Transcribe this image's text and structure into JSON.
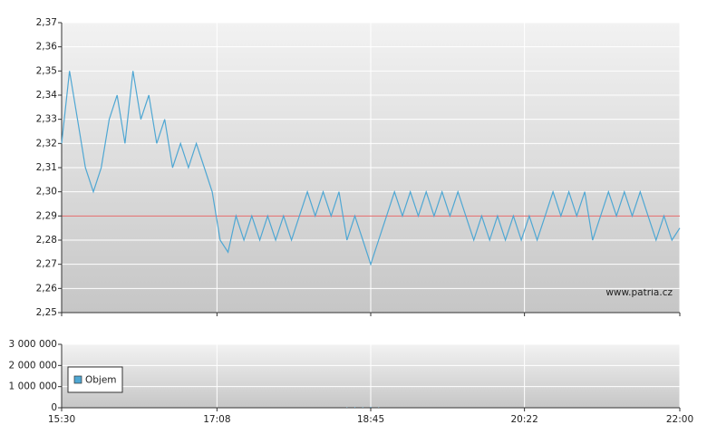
{
  "chart_data": [
    {
      "type": "line",
      "series": [
        {
          "color": "#4fa7d3",
          "x": [
            930,
            935,
            940,
            945,
            950,
            955,
            960,
            965,
            970,
            975,
            980,
            985,
            990,
            995,
            1000,
            1005,
            1010,
            1015,
            1020,
            1025,
            1030,
            1035,
            1040,
            1045,
            1050,
            1055,
            1060,
            1065,
            1070,
            1075,
            1080,
            1085,
            1090,
            1095,
            1100,
            1105,
            1110,
            1115,
            1120,
            1125,
            1130,
            1135,
            1140,
            1145,
            1150,
            1155,
            1160,
            1165,
            1170,
            1175,
            1180,
            1185,
            1190,
            1195,
            1200,
            1205,
            1210,
            1215,
            1220,
            1225,
            1230,
            1235,
            1240,
            1245,
            1250,
            1255,
            1260,
            1265,
            1270,
            1275,
            1280,
            1285,
            1290,
            1295,
            1300,
            1305,
            1310,
            1315,
            1320
          ],
          "values": [
            2.32,
            2.35,
            2.33,
            2.31,
            2.3,
            2.31,
            2.33,
            2.34,
            2.32,
            2.35,
            2.33,
            2.34,
            2.32,
            2.33,
            2.31,
            2.32,
            2.31,
            2.32,
            2.31,
            2.3,
            2.28,
            2.275,
            2.29,
            2.28,
            2.29,
            2.28,
            2.29,
            2.28,
            2.29,
            2.28,
            2.29,
            2.3,
            2.29,
            2.3,
            2.29,
            2.3,
            2.28,
            2.29,
            2.28,
            2.27,
            2.28,
            2.29,
            2.3,
            2.29,
            2.3,
            2.29,
            2.3,
            2.29,
            2.3,
            2.29,
            2.3,
            2.29,
            2.28,
            2.29,
            2.28,
            2.29,
            2.28,
            2.29,
            2.28,
            2.29,
            2.28,
            2.29,
            2.3,
            2.29,
            2.3,
            2.29,
            2.3,
            2.28,
            2.29,
            2.3,
            2.29,
            2.3,
            2.29,
            2.3,
            2.29,
            2.28,
            2.29,
            2.28,
            2.285
          ]
        }
      ],
      "xlim": [
        930,
        1320
      ],
      "ylim": [
        2.25,
        2.37
      ],
      "yticks": [
        {
          "value": 2.25,
          "label": "2,25"
        },
        {
          "value": 2.26,
          "label": "2,26"
        },
        {
          "value": 2.27,
          "label": "2,27"
        },
        {
          "value": 2.28,
          "label": "2,28"
        },
        {
          "value": 2.29,
          "label": "2,29"
        },
        {
          "value": 2.3,
          "label": "2,30"
        },
        {
          "value": 2.31,
          "label": "2,31"
        },
        {
          "value": 2.32,
          "label": "2,32"
        },
        {
          "value": 2.33,
          "label": "2,33"
        },
        {
          "value": 2.34,
          "label": "2,34"
        },
        {
          "value": 2.35,
          "label": "2,35"
        },
        {
          "value": 2.36,
          "label": "2,36"
        },
        {
          "value": 2.37,
          "label": "2,37"
        }
      ],
      "reference_line": {
        "value": 2.29,
        "color": "#e06666"
      },
      "annotation": "www.patria.cz",
      "grid": true
    },
    {
      "type": "bar",
      "series": [
        {
          "name": "Objem",
          "color": "#4fa7d3",
          "x": [
            1110,
            1115,
            1120,
            1125,
            1130
          ],
          "values": [
            20000,
            30000,
            25000,
            40000,
            20000
          ]
        }
      ],
      "xlim": [
        930,
        1320
      ],
      "ylim": [
        0,
        3000000
      ],
      "yticks": [
        0,
        {
          "value": 1000000,
          "label": "1 000 000"
        },
        {
          "value": 2000000,
          "label": "2 000 000"
        },
        {
          "value": 3000000,
          "label": "3 000 000"
        }
      ],
      "xticks": [
        {
          "value": 930,
          "label": "15:30"
        },
        {
          "value": 1028,
          "label": "17:08"
        },
        {
          "value": 1125,
          "label": "18:45"
        },
        {
          "value": 1222,
          "label": "20:22"
        },
        {
          "value": 1320,
          "label": "22:00"
        }
      ],
      "grid": true
    }
  ]
}
